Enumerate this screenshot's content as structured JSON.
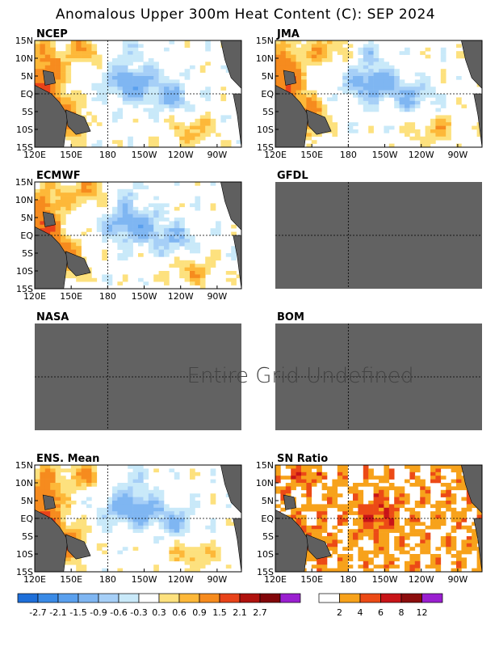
{
  "chart_data": {
    "type": "heatmap",
    "title": "Anomalous Upper 300m Heat Content (C): SEP 2024",
    "x_ticks": [
      "120E",
      "150E",
      "180",
      "150W",
      "120W",
      "90W"
    ],
    "y_ticks": [
      "15N",
      "10N",
      "5N",
      "EQ",
      "5S",
      "10S",
      "15S"
    ],
    "no_data_message": "Entire Grid Undefined",
    "panels": [
      {
        "name": "NCEP",
        "status": "data",
        "warm_west": true,
        "cool_central": true
      },
      {
        "name": "JMA",
        "status": "data",
        "warm_west": true,
        "cool_central": true
      },
      {
        "name": "ECMWF",
        "status": "data",
        "warm_west": true,
        "cool_central": true
      },
      {
        "name": "GFDL",
        "status": "undefined"
      },
      {
        "name": "NASA",
        "status": "undefined"
      },
      {
        "name": "BOM",
        "status": "undefined"
      },
      {
        "name": "ENS. Mean",
        "status": "data",
        "warm_west": true,
        "cool_central": true
      },
      {
        "name": "SN Ratio",
        "status": "snr"
      }
    ],
    "anomaly_colorbar": {
      "labels": [
        "-2.7",
        "-2.1",
        "-1.5",
        "-0.9",
        "-0.6",
        "-0.3",
        "0.3",
        "0.6",
        "0.9",
        "1.5",
        "2.1",
        "2.7"
      ],
      "colors": [
        "#1e6fd9",
        "#3a8ae6",
        "#5aa0ee",
        "#7fb6f2",
        "#a6cff7",
        "#c9e9f9",
        "#ffffff",
        "#fde17e",
        "#fdb839",
        "#f68b1e",
        "#e8431a",
        "#b0120e",
        "#82060a",
        "#9a1fd0"
      ]
    },
    "snr_colorbar": {
      "labels": [
        "2",
        "4",
        "6",
        "8",
        "12"
      ],
      "colors": [
        "#ffffff",
        "#f7a21b",
        "#ec4a16",
        "#c81418",
        "#8c0d0d",
        "#9a1fd0"
      ]
    },
    "grid": "dashed equator and 180 meridian",
    "missing_color": "#626262",
    "land_color": "#5f5f5f"
  }
}
